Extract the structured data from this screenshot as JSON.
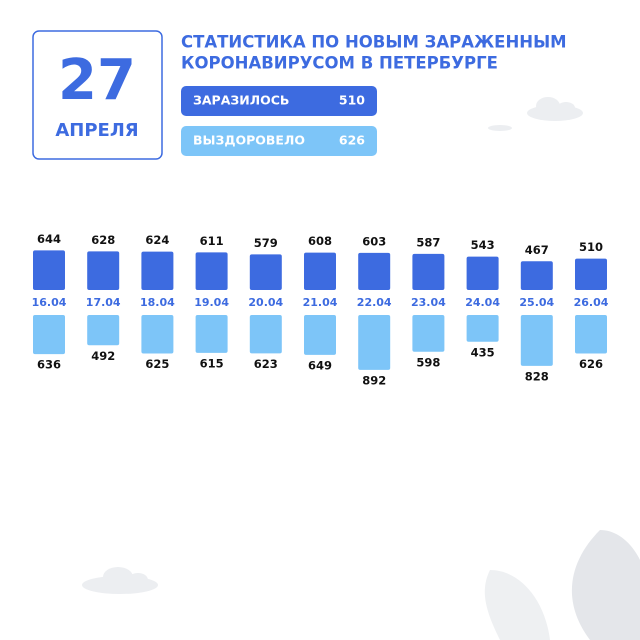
{
  "date": {
    "day": "27",
    "month": "АПРЕЛЯ"
  },
  "chart_data": {
    "type": "diverging-bar",
    "title_lines": [
      "СТАТИСТИКА ПО НОВЫМ ЗАРАЖЕННЫМ",
      "КОРОНАВИРУСОМ В ПЕТЕРБУРГЕ"
    ],
    "categories": [
      "16.04",
      "17.04",
      "18.04",
      "19.04",
      "20.04",
      "21.04",
      "22.04",
      "23.04",
      "24.04",
      "25.04",
      "26.04"
    ],
    "series": [
      {
        "name": "ЗАРАЗИЛОСЬ",
        "color": "#3d6be0",
        "values": [
          644,
          628,
          624,
          611,
          579,
          608,
          603,
          587,
          543,
          467,
          510
        ]
      },
      {
        "name": "ВЫЗДОРОВЕЛО",
        "color": "#7dc5f8",
        "values": [
          636,
          492,
          625,
          615,
          623,
          649,
          892,
          598,
          435,
          828,
          626
        ]
      }
    ]
  }
}
